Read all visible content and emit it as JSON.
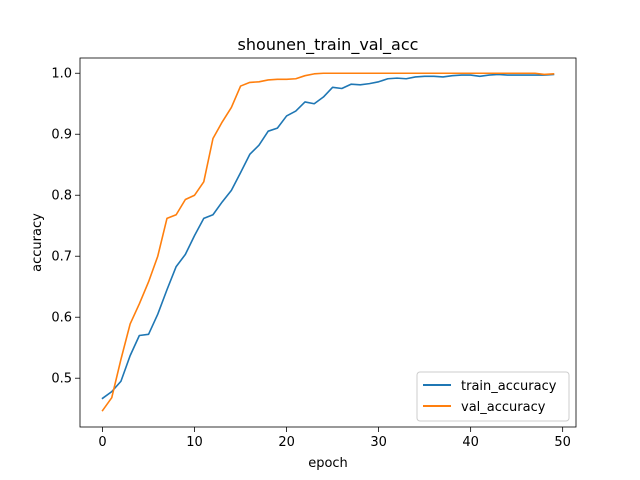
{
  "chart_data": {
    "type": "line",
    "title": "shounen_train_val_acc",
    "xlabel": "epoch",
    "ylabel": "accuracy",
    "xlim": [
      -2.45,
      51.45
    ],
    "ylim": [
      0.42,
      1.025
    ],
    "xticks": [
      0,
      10,
      20,
      30,
      40,
      50
    ],
    "yticks": [
      0.5,
      0.6,
      0.7,
      0.8,
      0.9,
      1.0
    ],
    "ytick_labels": [
      "0.5",
      "0.6",
      "0.7",
      "0.8",
      "0.9",
      "1.0"
    ],
    "grid": false,
    "legend_position": "lower-right",
    "x": [
      0,
      1,
      2,
      3,
      4,
      5,
      6,
      7,
      8,
      9,
      10,
      11,
      12,
      13,
      14,
      15,
      16,
      17,
      18,
      19,
      20,
      21,
      22,
      23,
      24,
      25,
      26,
      27,
      28,
      29,
      30,
      31,
      32,
      33,
      34,
      35,
      36,
      37,
      38,
      39,
      40,
      41,
      42,
      43,
      44,
      45,
      46,
      47,
      48,
      49
    ],
    "series": [
      {
        "name": "train_accuracy",
        "color": "#1f77b4",
        "values": [
          0.467,
          0.478,
          0.495,
          0.537,
          0.57,
          0.572,
          0.605,
          0.645,
          0.683,
          0.703,
          0.734,
          0.762,
          0.768,
          0.789,
          0.808,
          0.837,
          0.867,
          0.882,
          0.905,
          0.91,
          0.93,
          0.938,
          0.953,
          0.95,
          0.961,
          0.977,
          0.975,
          0.982,
          0.981,
          0.983,
          0.986,
          0.991,
          0.992,
          0.991,
          0.994,
          0.995,
          0.995,
          0.994,
          0.996,
          0.997,
          0.997,
          0.995,
          0.997,
          0.998,
          0.997,
          0.997,
          0.997,
          0.997,
          0.997,
          0.998
        ]
      },
      {
        "name": "val_accuracy",
        "color": "#ff7f0e",
        "values": [
          0.447,
          0.468,
          0.531,
          0.589,
          0.622,
          0.658,
          0.7,
          0.762,
          0.768,
          0.793,
          0.8,
          0.822,
          0.893,
          0.92,
          0.944,
          0.979,
          0.985,
          0.986,
          0.989,
          0.99,
          0.99,
          0.991,
          0.996,
          0.999,
          1.0,
          1.0,
          1.0,
          1.0,
          1.0,
          1.0,
          1.0,
          1.0,
          1.0,
          1.0,
          1.0,
          1.0,
          1.0,
          1.0,
          1.0,
          1.0,
          1.0,
          1.0,
          1.0,
          1.0,
          1.0,
          1.0,
          1.0,
          1.0,
          0.998,
          0.999
        ]
      }
    ]
  }
}
